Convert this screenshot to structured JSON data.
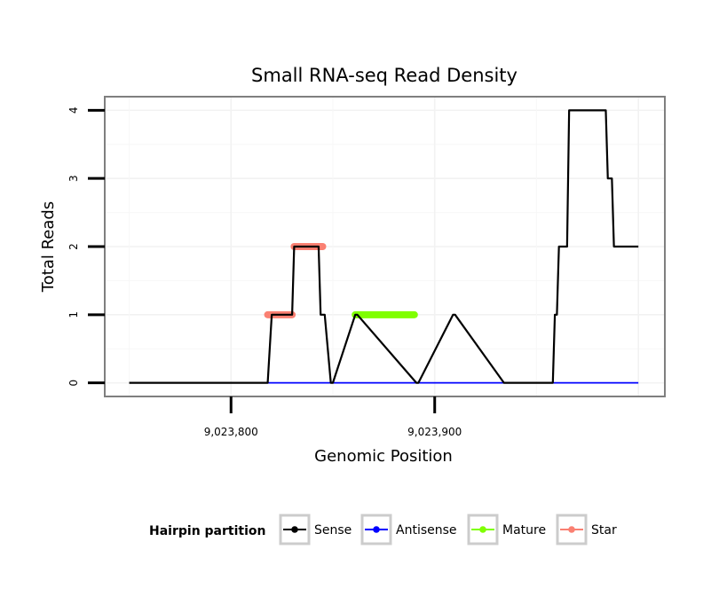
{
  "chart_data": {
    "type": "line",
    "title": "Small RNA-seq Read Density",
    "xlabel": "Genomic Position",
    "ylabel": "Total Reads",
    "xlim": [
      9023738,
      9024013
    ],
    "ylim": [
      -0.2,
      4.2
    ],
    "x_ticks": [
      9023800,
      9023900
    ],
    "x_tick_labels": [
      "9,023,800",
      "9,023,900"
    ],
    "y_ticks": [
      0,
      1,
      2,
      3,
      4
    ],
    "y_tick_labels": [
      "0",
      "1",
      "2",
      "3",
      "4"
    ],
    "grid": true,
    "legend_title": "Hairpin partition",
    "legend_position": "bottom",
    "series": [
      {
        "name": "Sense",
        "color": "#000000",
        "x": [
          9023750,
          9023818,
          9023820,
          9023830,
          9023831,
          9023843,
          9023844,
          9023846,
          9023849,
          9023850,
          9023861,
          9023862,
          9023891,
          9023892,
          9023909,
          9023910,
          9023934,
          9023935,
          9023958,
          9023959,
          9023960,
          9023961,
          9023965,
          9023966,
          9023984,
          9023985,
          9023987,
          9023988,
          9024000
        ],
        "y": [
          0,
          0,
          1,
          1,
          2,
          2,
          1,
          1,
          0,
          0,
          1,
          1,
          0,
          0,
          1,
          1,
          0,
          0,
          0,
          1,
          1,
          2,
          2,
          4,
          4,
          3,
          3,
          2,
          2
        ]
      },
      {
        "name": "Antisense",
        "color": "#0000ff",
        "x": [
          9023818,
          9024000
        ],
        "y": [
          0,
          0
        ]
      },
      {
        "name": "Mature",
        "color": "#7fff00",
        "x": [
          9023861,
          9023890
        ],
        "y": [
          1,
          1
        ]
      },
      {
        "name": "Star",
        "color": "#fa8072",
        "x": [
          [
            9023818,
            9023830
          ],
          [
            9023831,
            9023845
          ]
        ],
        "y": [
          1,
          2
        ]
      }
    ]
  }
}
